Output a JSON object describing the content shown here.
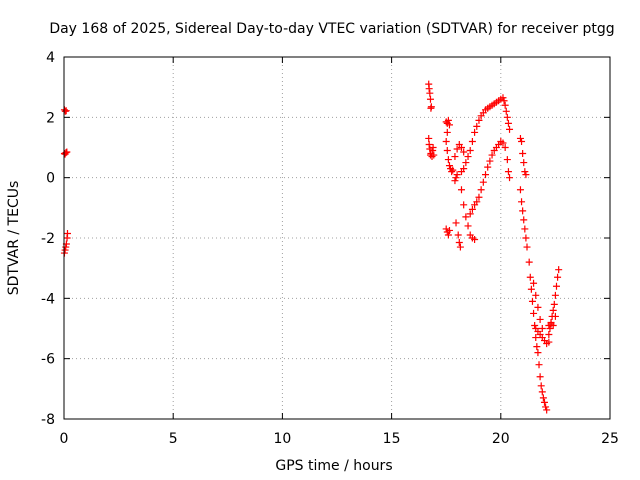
{
  "chart_data": {
    "type": "scatter",
    "title": "Day 168 of 2025, Sidereal Day-to-day VTEC variation (SDTVAR) for receiver ptgg",
    "xlabel": "GPS time / hours",
    "ylabel": "SDTVAR / TECUs",
    "xlim": [
      0,
      25
    ],
    "ylim": [
      -8,
      4
    ],
    "xticks": [
      0,
      5,
      10,
      15,
      20,
      25
    ],
    "yticks": [
      4,
      2,
      0,
      -2,
      -4,
      -6,
      -8
    ],
    "xtick_labels": [
      "0",
      "5",
      "10",
      "15",
      "20",
      "25"
    ],
    "ytick_labels": [
      "4",
      "2",
      "0",
      "-2",
      "-4",
      "-6",
      "-8"
    ],
    "grid": true,
    "marker": "+",
    "color": "#ff0000",
    "series": [
      {
        "name": "SDTVAR",
        "points": [
          [
            0.02,
            2.25
          ],
          [
            0.06,
            2.2
          ],
          [
            0.1,
            2.22
          ],
          [
            0.02,
            0.8
          ],
          [
            0.05,
            0.78
          ],
          [
            0.09,
            0.83
          ],
          [
            0.13,
            0.85
          ],
          [
            0.02,
            -2.5
          ],
          [
            0.05,
            -2.4
          ],
          [
            0.08,
            -2.3
          ],
          [
            0.11,
            -2.2
          ],
          [
            0.14,
            -2.0
          ],
          [
            0.16,
            -1.85
          ],
          [
            16.7,
            3.1
          ],
          [
            16.72,
            2.95
          ],
          [
            16.75,
            2.8
          ],
          [
            16.78,
            2.6
          ],
          [
            16.8,
            2.3
          ],
          [
            16.82,
            2.35
          ],
          [
            16.7,
            1.3
          ],
          [
            16.72,
            1.1
          ],
          [
            16.75,
            0.95
          ],
          [
            16.78,
            0.75
          ],
          [
            16.8,
            0.8
          ],
          [
            16.85,
            0.7
          ],
          [
            16.88,
            0.9
          ],
          [
            16.9,
            1.0
          ],
          [
            16.93,
            0.75
          ],
          [
            17.5,
            1.85
          ],
          [
            17.55,
            1.8
          ],
          [
            17.6,
            1.9
          ],
          [
            17.65,
            1.75
          ],
          [
            17.55,
            1.5
          ],
          [
            17.5,
            1.2
          ],
          [
            17.55,
            0.9
          ],
          [
            17.6,
            0.6
          ],
          [
            17.65,
            0.4
          ],
          [
            17.7,
            0.3
          ],
          [
            17.75,
            0.2
          ],
          [
            17.8,
            0.25
          ],
          [
            17.5,
            -1.7
          ],
          [
            17.55,
            -1.8
          ],
          [
            17.6,
            -1.9
          ],
          [
            17.65,
            -1.75
          ],
          [
            17.9,
            0.7
          ],
          [
            18.0,
            0.95
          ],
          [
            18.1,
            1.1
          ],
          [
            18.2,
            1.0
          ],
          [
            18.3,
            0.85
          ],
          [
            17.9,
            -0.1
          ],
          [
            17.95,
            0.0
          ],
          [
            18.0,
            0.1
          ],
          [
            17.95,
            -1.5
          ],
          [
            18.05,
            -1.9
          ],
          [
            18.1,
            -2.15
          ],
          [
            18.15,
            -2.3
          ],
          [
            18.2,
            0.2
          ],
          [
            18.3,
            0.3
          ],
          [
            18.4,
            0.5
          ],
          [
            18.5,
            0.7
          ],
          [
            18.6,
            0.9
          ],
          [
            18.7,
            1.2
          ],
          [
            18.8,
            1.5
          ],
          [
            18.9,
            1.7
          ],
          [
            19.0,
            1.9
          ],
          [
            19.1,
            2.05
          ],
          [
            19.2,
            2.15
          ],
          [
            19.3,
            2.25
          ],
          [
            19.4,
            2.3
          ],
          [
            19.5,
            2.35
          ],
          [
            19.6,
            2.4
          ],
          [
            19.7,
            2.45
          ],
          [
            19.8,
            2.5
          ],
          [
            19.9,
            2.55
          ],
          [
            20.0,
            2.6
          ],
          [
            20.1,
            2.65
          ],
          [
            20.15,
            2.55
          ],
          [
            20.2,
            2.4
          ],
          [
            20.25,
            2.2
          ],
          [
            20.3,
            2.0
          ],
          [
            20.35,
            1.8
          ],
          [
            20.4,
            1.6
          ],
          [
            18.2,
            -0.4
          ],
          [
            18.3,
            -0.9
          ],
          [
            18.4,
            -1.3
          ],
          [
            18.5,
            -1.6
          ],
          [
            18.6,
            -1.9
          ],
          [
            18.7,
            -2.0
          ],
          [
            18.8,
            -2.05
          ],
          [
            18.6,
            -1.2
          ],
          [
            18.7,
            -1.05
          ],
          [
            18.8,
            -0.9
          ],
          [
            18.9,
            -0.8
          ],
          [
            19.0,
            -0.65
          ],
          [
            19.1,
            -0.4
          ],
          [
            19.2,
            -0.15
          ],
          [
            19.3,
            0.1
          ],
          [
            19.4,
            0.35
          ],
          [
            19.5,
            0.55
          ],
          [
            19.6,
            0.75
          ],
          [
            19.7,
            0.9
          ],
          [
            19.8,
            1.0
          ],
          [
            19.9,
            1.1
          ],
          [
            20.0,
            1.2
          ],
          [
            20.1,
            1.15
          ],
          [
            20.2,
            1.0
          ],
          [
            20.3,
            0.6
          ],
          [
            20.35,
            0.2
          ],
          [
            20.4,
            0.0
          ],
          [
            20.9,
            1.3
          ],
          [
            20.95,
            1.2
          ],
          [
            21.0,
            0.8
          ],
          [
            21.05,
            0.5
          ],
          [
            21.1,
            0.2
          ],
          [
            21.15,
            0.1
          ],
          [
            20.9,
            -0.4
          ],
          [
            20.95,
            -0.8
          ],
          [
            21.0,
            -1.1
          ],
          [
            21.05,
            -1.4
          ],
          [
            21.1,
            -1.7
          ],
          [
            21.15,
            -2.0
          ],
          [
            21.2,
            -2.3
          ],
          [
            21.3,
            -2.8
          ],
          [
            21.35,
            -3.3
          ],
          [
            21.4,
            -3.7
          ],
          [
            21.45,
            -4.1
          ],
          [
            21.5,
            -4.5
          ],
          [
            21.55,
            -4.9
          ],
          [
            21.6,
            -5.3
          ],
          [
            21.65,
            -5.6
          ],
          [
            21.7,
            -5.8
          ],
          [
            21.5,
            -3.5
          ],
          [
            21.6,
            -3.9
          ],
          [
            21.7,
            -4.3
          ],
          [
            21.8,
            -4.7
          ],
          [
            21.9,
            -5.0
          ],
          [
            21.6,
            -5.0
          ],
          [
            21.7,
            -5.1
          ],
          [
            21.8,
            -5.2
          ],
          [
            21.9,
            -5.3
          ],
          [
            22.0,
            -5.4
          ],
          [
            22.1,
            -5.5
          ],
          [
            22.2,
            -5.45
          ],
          [
            21.75,
            -6.2
          ],
          [
            21.8,
            -6.6
          ],
          [
            21.85,
            -6.9
          ],
          [
            21.9,
            -7.1
          ],
          [
            21.95,
            -7.3
          ],
          [
            22.0,
            -7.45
          ],
          [
            22.05,
            -7.6
          ],
          [
            22.1,
            -7.7
          ],
          [
            22.2,
            -5.2
          ],
          [
            22.25,
            -5.0
          ],
          [
            22.3,
            -4.8
          ],
          [
            22.35,
            -4.6
          ],
          [
            22.4,
            -4.4
          ],
          [
            22.45,
            -4.2
          ],
          [
            22.5,
            -3.9
          ],
          [
            22.55,
            -3.6
          ],
          [
            22.6,
            -3.3
          ],
          [
            22.65,
            -3.05
          ],
          [
            22.2,
            -4.9
          ],
          [
            22.3,
            -4.85
          ],
          [
            22.4,
            -4.9
          ],
          [
            22.5,
            -4.6
          ]
        ]
      }
    ]
  }
}
